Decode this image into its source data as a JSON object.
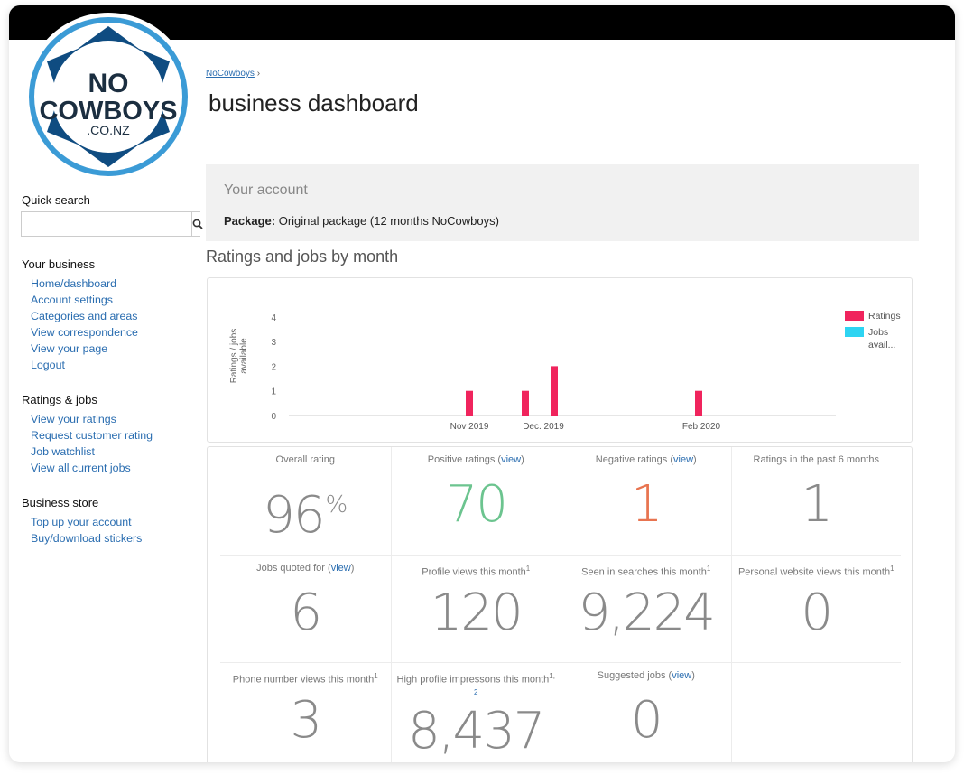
{
  "logo": {
    "line1": "NO",
    "line2": "COWBOYS",
    "line3": ".CO.NZ"
  },
  "breadcrumb": {
    "link": "NoCowboys",
    "separator": "›"
  },
  "page_title": "business dashboard",
  "quick_search": {
    "title": "Quick search",
    "placeholder": ""
  },
  "sidebar": {
    "your_business": {
      "title": "Your business",
      "items": [
        "Home/dashboard",
        "Account settings",
        "Categories and areas",
        "View correspondence",
        "View your page",
        "Logout"
      ]
    },
    "ratings_jobs": {
      "title": "Ratings & jobs",
      "items": [
        "View your ratings",
        "Request customer rating",
        "Job watchlist",
        "View all current jobs"
      ]
    },
    "business_store": {
      "title": "Business store",
      "items": [
        "Top up your account",
        "Buy/download stickers"
      ]
    }
  },
  "account": {
    "title": "Your account",
    "package_label": "Package:",
    "package_value": "Original package (12 months NoCowboys)"
  },
  "section_title": "Ratings and jobs by month",
  "chart_data": {
    "type": "bar",
    "ylabel": "Ratings / jobs available",
    "ylim": [
      0,
      4
    ],
    "yticks": [
      "0",
      "1",
      "2",
      "3",
      "4"
    ],
    "xlabels": [
      "Nov 2019",
      "Dec. 2019",
      "Feb 2020"
    ],
    "series": [
      {
        "name": "Ratings",
        "color": "#f0245d",
        "points": [
          {
            "x": "Nov 2019",
            "value": 1
          },
          {
            "x": "Dec 2019 (early)",
            "value": 1
          },
          {
            "x": "Dec 2019 (late)",
            "value": 2
          },
          {
            "x": "Feb 2020",
            "value": 1
          }
        ]
      },
      {
        "name": "Jobs avail...",
        "color": "#2ed4f2",
        "points": []
      }
    ],
    "legend": [
      "Ratings",
      "Jobs avail..."
    ],
    "legend_position": "right"
  },
  "stats": {
    "overall": {
      "label": "Overall rating",
      "value": "96",
      "suffix": "%"
    },
    "positive": {
      "label": "Positive ratings",
      "link": "view",
      "value": "70"
    },
    "negative": {
      "label": "Negative ratings",
      "link": "view",
      "value": "1"
    },
    "past6": {
      "label": "Ratings in the past 6 months",
      "value": "1"
    },
    "jobs_quoted": {
      "label": "Jobs quoted for",
      "link": "view",
      "value": "6"
    },
    "profile_views": {
      "label": "Profile views this month",
      "sup": "1",
      "value": "120"
    },
    "seen_searches": {
      "label": "Seen in searches this month",
      "sup": "1",
      "value": "9,224"
    },
    "website_views": {
      "label": "Personal website views this month",
      "sup": "1",
      "value": "0"
    },
    "phone_views": {
      "label": "Phone number views this month",
      "sup": "1",
      "value": "3"
    },
    "impressions": {
      "label": "High profile impressons this month",
      "sup": "1,",
      "sup2": "2",
      "value": "8,437"
    },
    "suggested": {
      "label": "Suggested jobs",
      "link": "view",
      "value": "0"
    }
  }
}
